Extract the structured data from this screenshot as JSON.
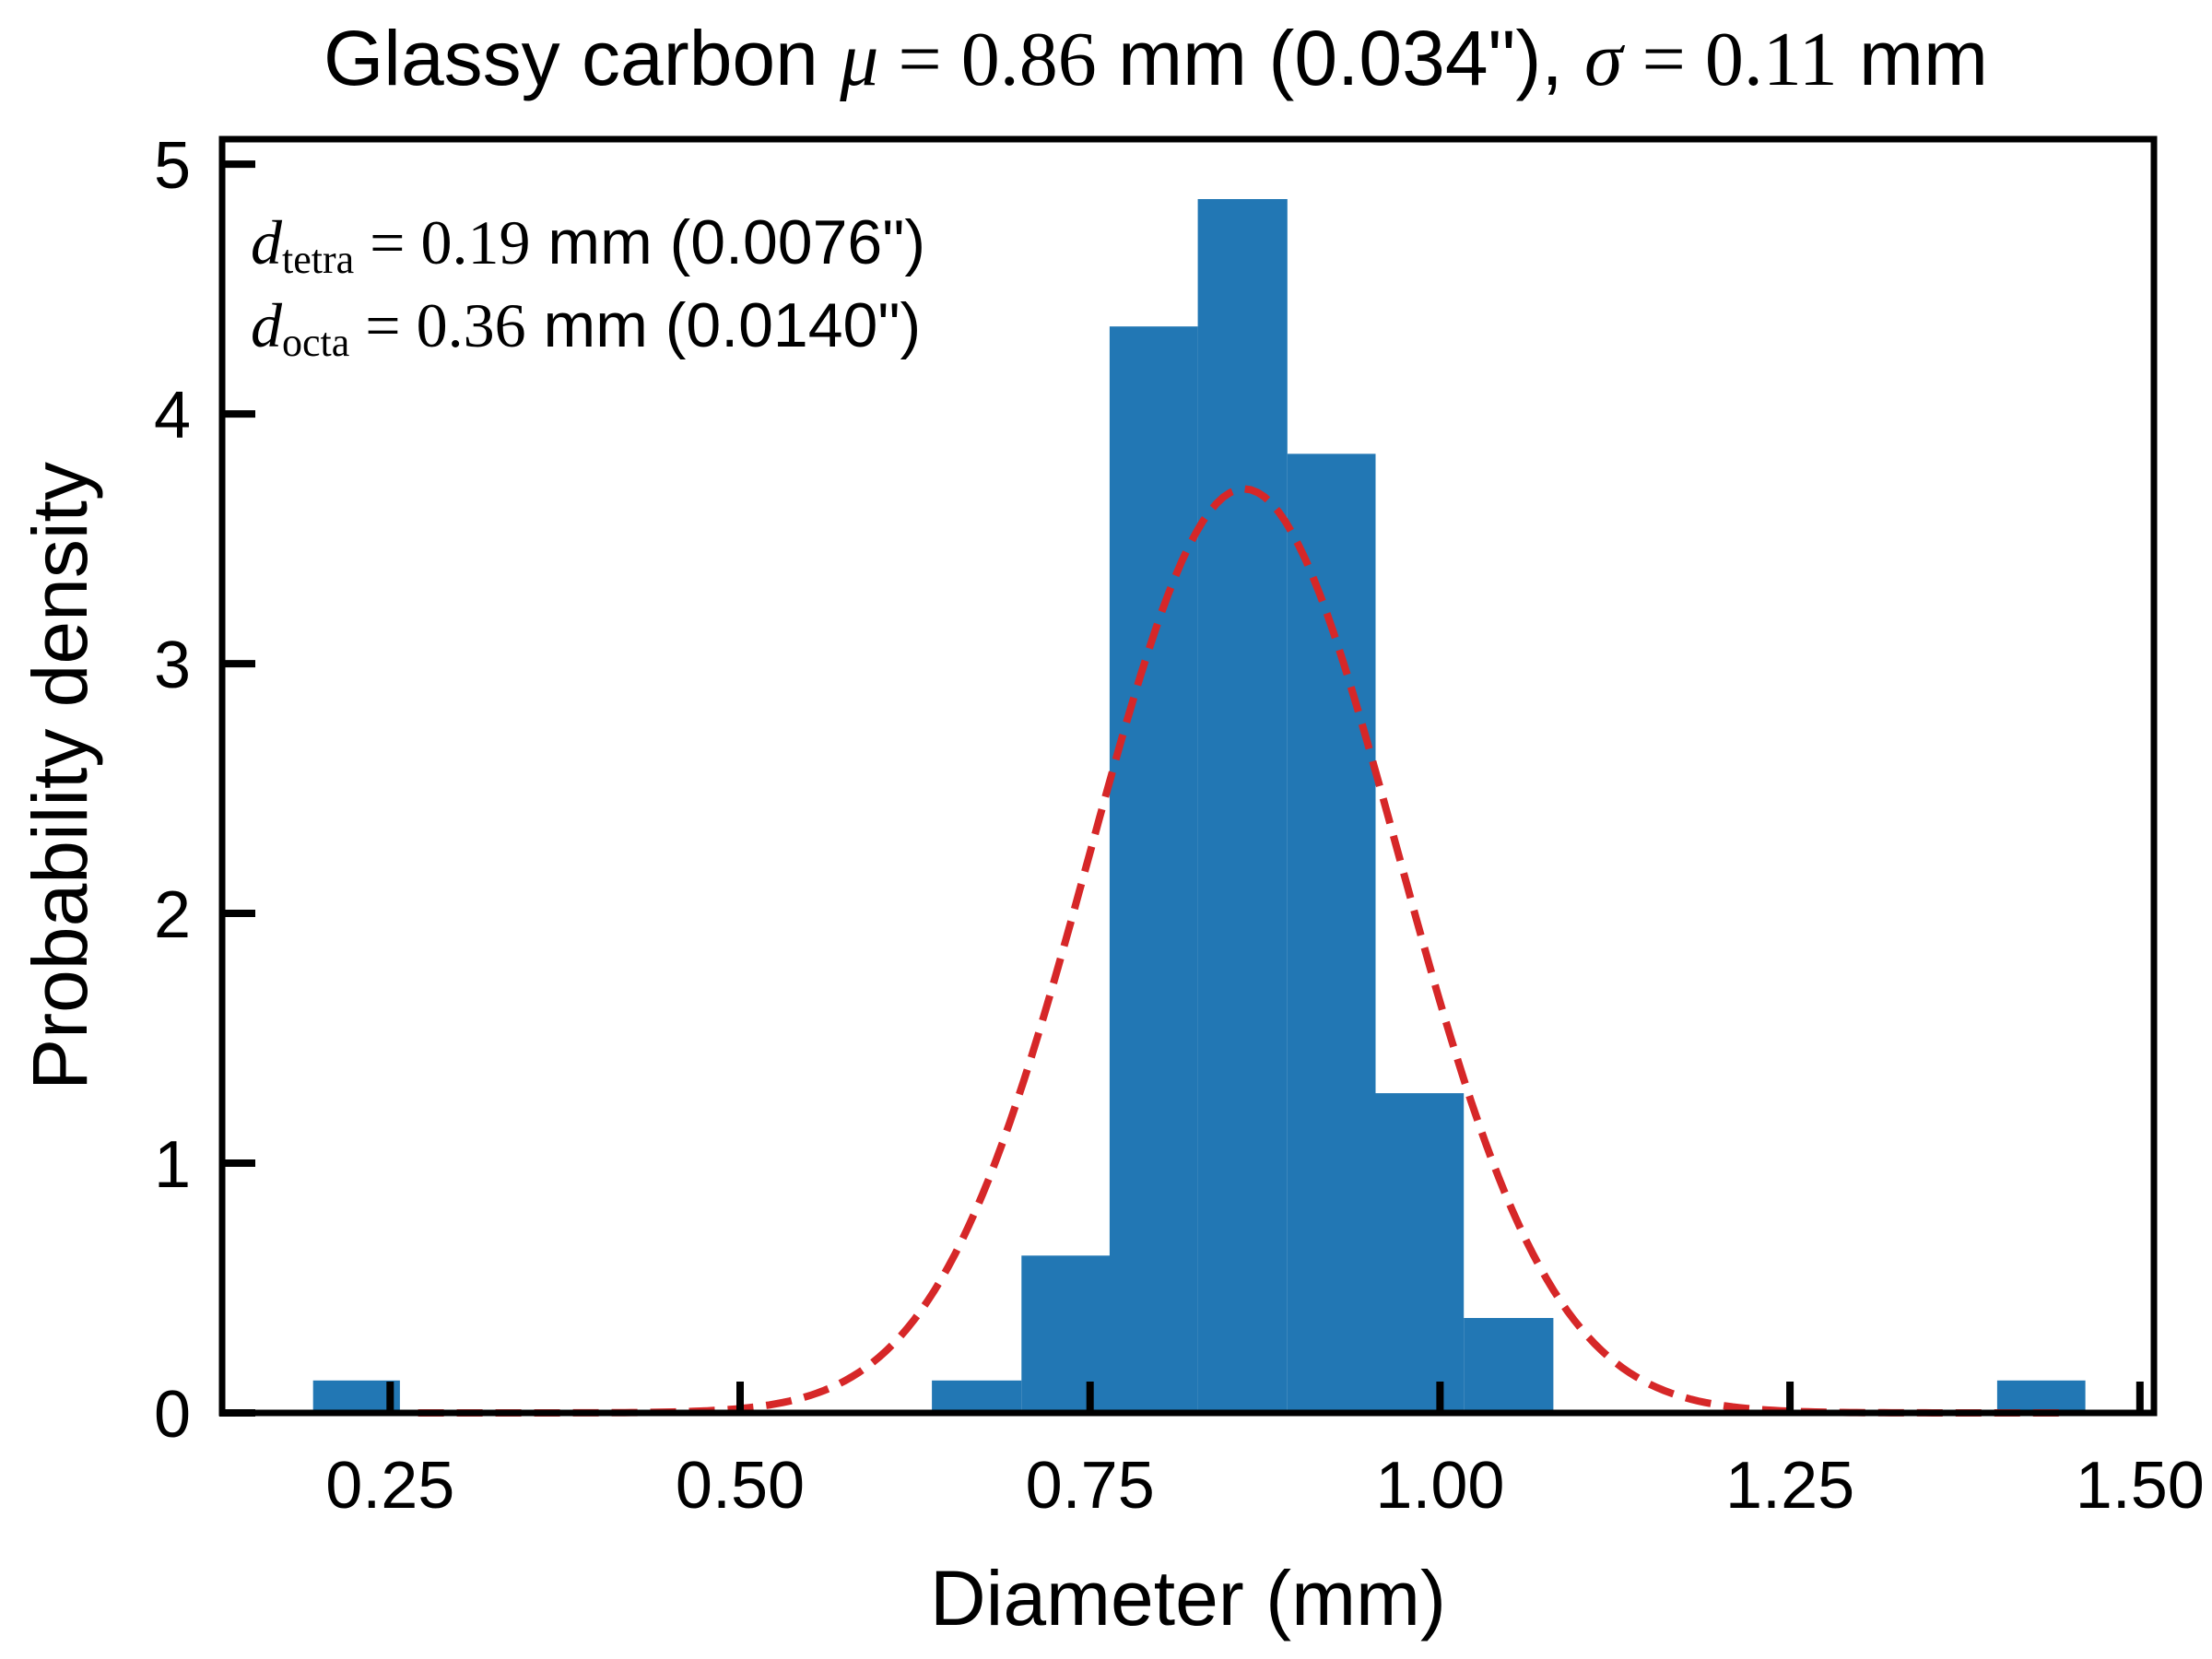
{
  "chart_data": {
    "type": "bar",
    "title": {
      "part1": "Glassy carbon ",
      "mu_symbol": "μ",
      "eq1": " = ",
      "mu_value": "0.86",
      "part2": " mm (0.034\"), ",
      "sigma_symbol": "σ",
      "eq2": " = ",
      "sigma_value": "0.11",
      "part3": " mm"
    },
    "xlabel": "Diameter (mm)",
    "ylabel": "Probability density",
    "xlim": [
      0.13,
      1.51
    ],
    "ylim": [
      0,
      5.1
    ],
    "xticks": [
      "0.25",
      "0.50",
      "0.75",
      "1.00",
      "1.25",
      "1.50"
    ],
    "xtick_values": [
      0.25,
      0.5,
      0.75,
      1.0,
      1.25,
      1.5
    ],
    "yticks": [
      "0",
      "1",
      "2",
      "3",
      "4",
      "5"
    ],
    "ytick_values": [
      0,
      1,
      2,
      3,
      4,
      5
    ],
    "annotations": [
      {
        "var": "d",
        "sub": "tetra",
        "eq": " = ",
        "value": "0.19",
        "rest": " mm (0.0076\")"
      },
      {
        "var": "d",
        "sub": "octa",
        "eq": " = ",
        "value": "0.36",
        "rest": " mm (0.0140\")"
      }
    ],
    "histogram": {
      "color": "#2277b4",
      "bins": [
        {
          "x0": 0.195,
          "x1": 0.257,
          "value": 0.13
        },
        {
          "x0": 0.637,
          "x1": 0.701,
          "value": 0.13
        },
        {
          "x0": 0.701,
          "x1": 0.764,
          "value": 0.63
        },
        {
          "x0": 0.764,
          "x1": 0.827,
          "value": 4.35
        },
        {
          "x0": 0.827,
          "x1": 0.891,
          "value": 4.86
        },
        {
          "x0": 0.891,
          "x1": 0.954,
          "value": 3.84
        },
        {
          "x0": 0.954,
          "x1": 1.017,
          "value": 1.28
        },
        {
          "x0": 1.017,
          "x1": 1.081,
          "value": 0.38
        },
        {
          "x0": 1.398,
          "x1": 1.461,
          "value": 0.13
        }
      ]
    },
    "fit": {
      "type": "normal",
      "mu": 0.86,
      "sigma": 0.11,
      "peak": 3.7,
      "x_range": [
        0.27,
        1.45
      ],
      "color": "#d62728",
      "style": "dashed"
    },
    "grid": false,
    "legend": false
  }
}
